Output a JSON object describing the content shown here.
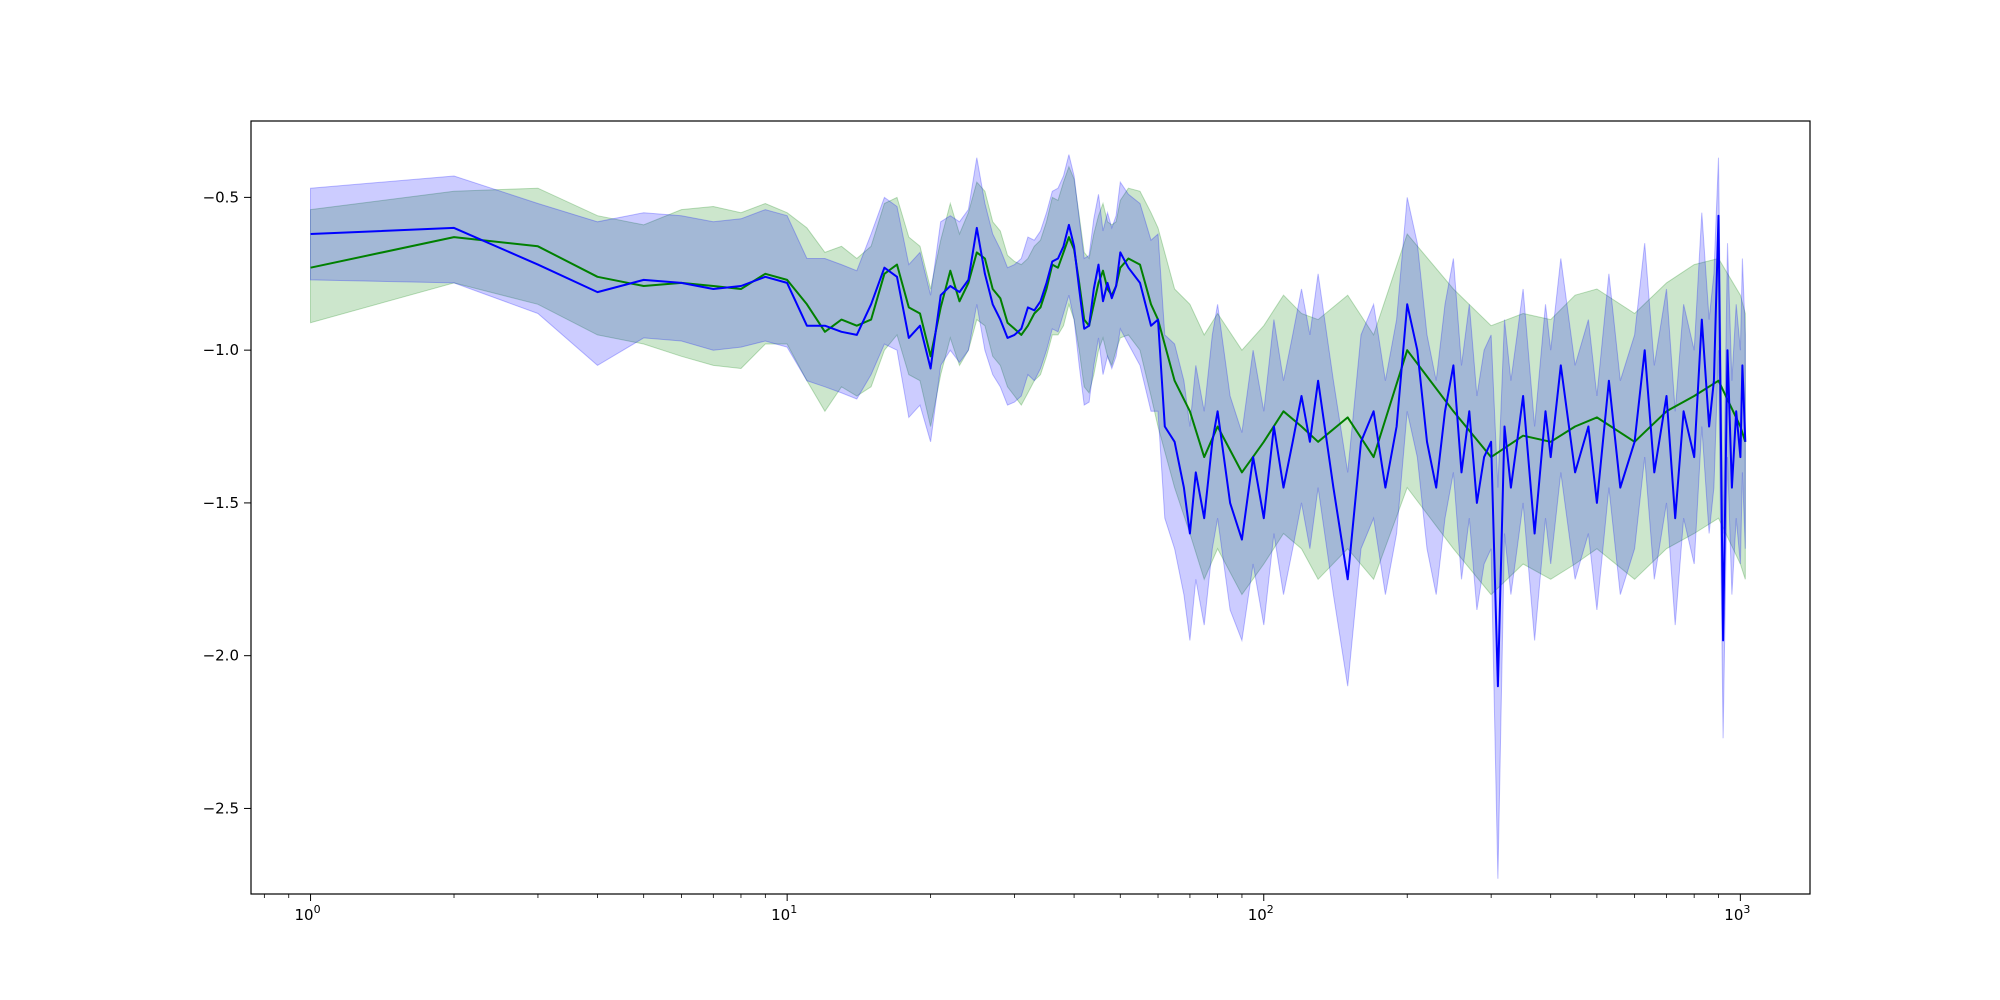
{
  "chart_data": {
    "type": "line",
    "title": "",
    "xlabel": "",
    "ylabel": "",
    "x_scale": "log",
    "xlim": [
      0.75,
      1400
    ],
    "ylim": [
      -2.78,
      -0.25
    ],
    "x_ticks": [
      {
        "value": 1,
        "base": "10",
        "exp": "0"
      },
      {
        "value": 10,
        "base": "10",
        "exp": "1"
      },
      {
        "value": 100,
        "base": "10",
        "exp": "2"
      },
      {
        "value": 1000,
        "base": "10",
        "exp": "3"
      }
    ],
    "y_ticks": [
      {
        "value": -0.5,
        "label": "−0.5"
      },
      {
        "value": -1.0,
        "label": "−1.0"
      },
      {
        "value": -1.5,
        "label": "−1.5"
      },
      {
        "value": -2.0,
        "label": "−2.0"
      },
      {
        "value": -2.5,
        "label": "−2.5"
      }
    ],
    "grid": false,
    "legend": "none",
    "series": [
      {
        "color": "#008000",
        "band_color": "#008000",
        "x": [
          1,
          2,
          3,
          4,
          5,
          6,
          7,
          8,
          9,
          10,
          11,
          12,
          13,
          14,
          15,
          16,
          17,
          18,
          19,
          20,
          21,
          22,
          23,
          24,
          25,
          26,
          27,
          28,
          29,
          30,
          31,
          32,
          33,
          34,
          35,
          36,
          37,
          38,
          39,
          40,
          41,
          42,
          43,
          44,
          45,
          46,
          47,
          48,
          49,
          50,
          52,
          55,
          58,
          60,
          65,
          70,
          75,
          80,
          90,
          100,
          110,
          120,
          130,
          150,
          170,
          200,
          250,
          300,
          350,
          400,
          450,
          500,
          600,
          700,
          800,
          900,
          1000,
          1024
        ],
        "values": [
          -0.73,
          -0.63,
          -0.66,
          -0.76,
          -0.79,
          -0.78,
          -0.79,
          -0.8,
          -0.75,
          -0.77,
          -0.85,
          -0.94,
          -0.9,
          -0.92,
          -0.9,
          -0.75,
          -0.72,
          -0.86,
          -0.88,
          -1.02,
          -0.86,
          -0.74,
          -0.84,
          -0.78,
          -0.68,
          -0.7,
          -0.8,
          -0.83,
          -0.91,
          -0.93,
          -0.95,
          -0.92,
          -0.88,
          -0.86,
          -0.8,
          -0.72,
          -0.73,
          -0.68,
          -0.63,
          -0.67,
          -0.78,
          -0.9,
          -0.92,
          -0.85,
          -0.78,
          -0.74,
          -0.8,
          -0.82,
          -0.79,
          -0.73,
          -0.7,
          -0.72,
          -0.85,
          -0.9,
          -1.1,
          -1.2,
          -1.35,
          -1.25,
          -1.4,
          -1.3,
          -1.2,
          -1.25,
          -1.3,
          -1.22,
          -1.35,
          -1.0,
          -1.2,
          -1.35,
          -1.28,
          -1.3,
          -1.25,
          -1.22,
          -1.3,
          -1.2,
          -1.15,
          -1.1,
          -1.25,
          -1.3
        ],
        "lower": [
          -0.91,
          -0.78,
          -0.85,
          -0.95,
          -0.98,
          -1.02,
          -1.05,
          -1.06,
          -0.98,
          -0.98,
          -1.1,
          -1.2,
          -1.12,
          -1.15,
          -1.12,
          -1.0,
          -0.95,
          -1.08,
          -1.1,
          -1.25,
          -1.08,
          -0.96,
          -1.05,
          -1.0,
          -0.9,
          -0.92,
          -1.02,
          -1.05,
          -1.12,
          -1.15,
          -1.18,
          -1.14,
          -1.1,
          -1.08,
          -1.02,
          -0.95,
          -0.95,
          -0.92,
          -0.85,
          -0.9,
          -1.0,
          -1.12,
          -1.14,
          -1.08,
          -1.0,
          -0.96,
          -1.02,
          -1.05,
          -1.0,
          -0.96,
          -0.95,
          -1.0,
          -1.15,
          -1.25,
          -1.45,
          -1.6,
          -1.75,
          -1.65,
          -1.8,
          -1.7,
          -1.6,
          -1.65,
          -1.75,
          -1.65,
          -1.75,
          -1.45,
          -1.65,
          -1.8,
          -1.7,
          -1.75,
          -1.7,
          -1.65,
          -1.75,
          -1.65,
          -1.6,
          -1.55,
          -1.7,
          -1.75
        ],
        "upper": [
          -0.54,
          -0.48,
          -0.47,
          -0.56,
          -0.59,
          -0.54,
          -0.53,
          -0.55,
          -0.52,
          -0.55,
          -0.6,
          -0.68,
          -0.66,
          -0.7,
          -0.66,
          -0.52,
          -0.5,
          -0.63,
          -0.66,
          -0.8,
          -0.64,
          -0.52,
          -0.62,
          -0.55,
          -0.45,
          -0.48,
          -0.58,
          -0.61,
          -0.69,
          -0.71,
          -0.72,
          -0.7,
          -0.66,
          -0.64,
          -0.58,
          -0.5,
          -0.51,
          -0.45,
          -0.4,
          -0.44,
          -0.56,
          -0.68,
          -0.7,
          -0.62,
          -0.56,
          -0.52,
          -0.58,
          -0.59,
          -0.58,
          -0.51,
          -0.47,
          -0.48,
          -0.55,
          -0.6,
          -0.8,
          -0.85,
          -0.95,
          -0.88,
          -1.0,
          -0.92,
          -0.82,
          -0.88,
          -0.9,
          -0.82,
          -0.95,
          -0.62,
          -0.8,
          -0.92,
          -0.88,
          -0.9,
          -0.82,
          -0.8,
          -0.88,
          -0.78,
          -0.72,
          -0.7,
          -0.82,
          -0.88
        ]
      },
      {
        "color": "#0000ff",
        "band_color": "#0000ff",
        "x": [
          1,
          2,
          3,
          4,
          5,
          6,
          7,
          8,
          9,
          10,
          11,
          12,
          13,
          14,
          15,
          16,
          17,
          18,
          19,
          20,
          21,
          22,
          23,
          24,
          25,
          26,
          27,
          28,
          29,
          30,
          31,
          32,
          33,
          34,
          35,
          36,
          37,
          38,
          39,
          40,
          41,
          42,
          43,
          44,
          45,
          46,
          47,
          48,
          49,
          50,
          52,
          55,
          58,
          60,
          62,
          65,
          68,
          70,
          72,
          75,
          78,
          80,
          85,
          90,
          95,
          100,
          105,
          110,
          115,
          120,
          125,
          130,
          140,
          150,
          160,
          170,
          180,
          190,
          200,
          210,
          220,
          230,
          240,
          250,
          260,
          270,
          280,
          290,
          300,
          310,
          320,
          330,
          340,
          350,
          370,
          390,
          400,
          420,
          450,
          480,
          500,
          530,
          560,
          600,
          630,
          660,
          700,
          730,
          760,
          800,
          830,
          860,
          880,
          900,
          920,
          940,
          960,
          980,
          1000,
          1010,
          1024
        ],
        "values": [
          -0.62,
          -0.6,
          -0.72,
          -0.81,
          -0.77,
          -0.78,
          -0.8,
          -0.79,
          -0.76,
          -0.78,
          -0.92,
          -0.92,
          -0.94,
          -0.95,
          -0.85,
          -0.73,
          -0.76,
          -0.96,
          -0.92,
          -1.06,
          -0.82,
          -0.79,
          -0.81,
          -0.77,
          -0.6,
          -0.75,
          -0.85,
          -0.9,
          -0.96,
          -0.95,
          -0.93,
          -0.86,
          -0.87,
          -0.84,
          -0.78,
          -0.71,
          -0.7,
          -0.66,
          -0.59,
          -0.66,
          -0.8,
          -0.93,
          -0.92,
          -0.8,
          -0.72,
          -0.84,
          -0.78,
          -0.83,
          -0.79,
          -0.68,
          -0.73,
          -0.78,
          -0.92,
          -0.9,
          -1.25,
          -1.3,
          -1.45,
          -1.6,
          -1.4,
          -1.55,
          -1.3,
          -1.2,
          -1.5,
          -1.62,
          -1.35,
          -1.55,
          -1.25,
          -1.45,
          -1.3,
          -1.15,
          -1.3,
          -1.1,
          -1.45,
          -1.75,
          -1.3,
          -1.2,
          -1.45,
          -1.25,
          -0.85,
          -1.0,
          -1.3,
          -1.45,
          -1.2,
          -1.05,
          -1.4,
          -1.2,
          -1.5,
          -1.35,
          -1.3,
          -2.1,
          -1.25,
          -1.45,
          -1.3,
          -1.15,
          -1.6,
          -1.2,
          -1.35,
          -1.05,
          -1.4,
          -1.25,
          -1.5,
          -1.1,
          -1.45,
          -1.3,
          -1.0,
          -1.4,
          -1.15,
          -1.55,
          -1.2,
          -1.35,
          -0.9,
          -1.25,
          -1.1,
          -0.56,
          -1.95,
          -1.0,
          -1.45,
          -1.2,
          -1.35,
          -1.05,
          -1.3
        ]
      }
    ],
    "blue_band": {
      "x": [
        1,
        2,
        3,
        4,
        5,
        6,
        7,
        8,
        9,
        10,
        11,
        12,
        13,
        14,
        15,
        16,
        17,
        18,
        19,
        20,
        21,
        22,
        23,
        24,
        25,
        26,
        27,
        28,
        29,
        30,
        31,
        32,
        33,
        34,
        35,
        36,
        37,
        38,
        39,
        40,
        41,
        42,
        43,
        44,
        45,
        46,
        47,
        48,
        49,
        50,
        52,
        55,
        58,
        60,
        62,
        65,
        68,
        70,
        72,
        75,
        78,
        80,
        85,
        90,
        95,
        100,
        105,
        110,
        115,
        120,
        125,
        130,
        140,
        150,
        160,
        170,
        180,
        190,
        200,
        210,
        220,
        230,
        240,
        250,
        260,
        270,
        280,
        290,
        300,
        310,
        320,
        330,
        340,
        350,
        370,
        390,
        400,
        420,
        450,
        480,
        500,
        530,
        560,
        600,
        630,
        660,
        700,
        730,
        760,
        800,
        830,
        860,
        880,
        900,
        920,
        940,
        960,
        980,
        1000,
        1010,
        1024
      ],
      "lower": [
        -0.77,
        -0.78,
        -0.88,
        -1.05,
        -0.96,
        -0.97,
        -1.0,
        -0.99,
        -0.97,
        -0.99,
        -1.1,
        -1.12,
        -1.14,
        -1.16,
        -1.08,
        -0.98,
        -1.0,
        -1.22,
        -1.18,
        -1.3,
        -1.05,
        -1.0,
        -1.04,
        -1.0,
        -0.85,
        -1.0,
        -1.08,
        -1.12,
        -1.18,
        -1.17,
        -1.15,
        -1.08,
        -1.1,
        -1.06,
        -1.0,
        -0.93,
        -0.94,
        -0.88,
        -0.82,
        -0.9,
        -1.05,
        -1.18,
        -1.17,
        -1.05,
        -0.96,
        -1.08,
        -1.02,
        -1.06,
        -1.02,
        -0.93,
        -0.98,
        -1.05,
        -1.2,
        -1.2,
        -1.55,
        -1.65,
        -1.8,
        -1.95,
        -1.75,
        -1.9,
        -1.65,
        -1.55,
        -1.85,
        -1.95,
        -1.7,
        -1.9,
        -1.6,
        -1.8,
        -1.65,
        -1.5,
        -1.65,
        -1.45,
        -1.8,
        -2.1,
        -1.65,
        -1.55,
        -1.8,
        -1.6,
        -1.2,
        -1.35,
        -1.65,
        -1.8,
        -1.55,
        -1.4,
        -1.75,
        -1.55,
        -1.85,
        -1.7,
        -1.65,
        -2.73,
        -1.6,
        -1.8,
        -1.65,
        -1.5,
        -1.95,
        -1.55,
        -1.7,
        -1.4,
        -1.75,
        -1.6,
        -1.85,
        -1.45,
        -1.8,
        -1.65,
        -1.35,
        -1.75,
        -1.5,
        -1.9,
        -1.55,
        -1.7,
        -1.25,
        -1.6,
        -1.45,
        -1.0,
        -2.27,
        -1.35,
        -1.8,
        -1.55,
        -1.7,
        -1.4,
        -1.65
      ],
      "upper": [
        -0.47,
        -0.43,
        -0.52,
        -0.58,
        -0.55,
        -0.56,
        -0.58,
        -0.57,
        -0.54,
        -0.56,
        -0.7,
        -0.7,
        -0.72,
        -0.74,
        -0.62,
        -0.5,
        -0.53,
        -0.72,
        -0.68,
        -0.82,
        -0.58,
        -0.56,
        -0.58,
        -0.54,
        -0.37,
        -0.52,
        -0.62,
        -0.67,
        -0.73,
        -0.72,
        -0.7,
        -0.63,
        -0.64,
        -0.61,
        -0.55,
        -0.48,
        -0.47,
        -0.43,
        -0.36,
        -0.43,
        -0.57,
        -0.7,
        -0.69,
        -0.57,
        -0.49,
        -0.61,
        -0.55,
        -0.6,
        -0.56,
        -0.45,
        -0.49,
        -0.52,
        -0.64,
        -0.62,
        -0.95,
        -0.98,
        -1.1,
        -1.25,
        -1.05,
        -1.2,
        -0.95,
        -0.85,
        -1.15,
        -1.27,
        -1.0,
        -1.2,
        -0.9,
        -1.1,
        -0.95,
        -0.8,
        -0.95,
        -0.75,
        -1.1,
        -1.4,
        -0.95,
        -0.85,
        -1.1,
        -0.9,
        -0.5,
        -0.65,
        -0.95,
        -1.1,
        -0.85,
        -0.7,
        -1.05,
        -0.85,
        -1.15,
        -1.0,
        -0.95,
        -1.45,
        -0.9,
        -1.1,
        -0.95,
        -0.8,
        -1.25,
        -0.85,
        -1.0,
        -0.7,
        -1.05,
        -0.9,
        -1.15,
        -0.75,
        -1.1,
        -0.95,
        -0.65,
        -1.05,
        -0.8,
        -1.2,
        -0.85,
        -1.0,
        -0.55,
        -0.9,
        -0.75,
        -0.37,
        -1.6,
        -0.65,
        -1.1,
        -0.85,
        -1.0,
        -0.7,
        -0.95
      ]
    }
  }
}
